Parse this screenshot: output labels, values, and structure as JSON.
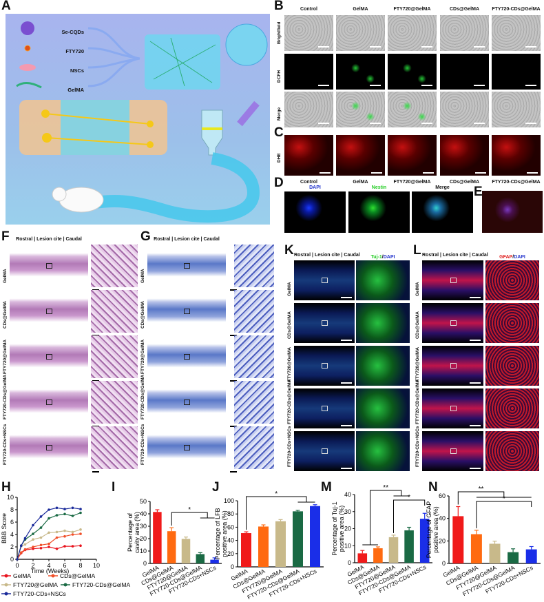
{
  "panels": {
    "A": "A",
    "B": "B",
    "C": "C",
    "D": "D",
    "E": "E",
    "F": "F",
    "G": "G",
    "H": "H",
    "I": "I",
    "J": "J",
    "K": "K",
    "L": "L",
    "M": "M",
    "N": "N"
  },
  "schematic": {
    "legend": [
      "Se-CQDs",
      "FTY720",
      "NSCs",
      "GelMA"
    ],
    "colors": {
      "background": "#9fb4e8",
      "hydrogel": "#5fd3ee",
      "se_cqds": "#7a4fd0",
      "fty720": "#e0501a",
      "nscs": "#f39ab0",
      "gelma": "#2fb07a"
    }
  },
  "panelB": {
    "columns": [
      "Control",
      "GelMA",
      "FTY720@GelMA",
      "CDs@GelMA",
      "FTY720-CDs@GelMA"
    ],
    "rows": [
      "Brightfield",
      "DCFH",
      "Merge"
    ]
  },
  "panelC": {
    "row": "DHE"
  },
  "panelD": {
    "group_labels": [
      "Control",
      "GelMA",
      "FTY720@GelMA",
      "CDs@GelMA",
      "FTY720-CDs@GelMA"
    ],
    "channels": [
      {
        "label": "DAPI",
        "color": "#2233cc"
      },
      {
        "label": "Nestin",
        "color": "#22cc22"
      },
      {
        "label": "Merge",
        "color": "#111111"
      }
    ]
  },
  "sections": {
    "header": "Rostral | Lesion cite | Caudal",
    "rows": [
      "GelMA",
      "CDs@GelMA",
      "FTY720@GelMA",
      "FTY720-CDs@GelMA",
      "FTY720-CDs+NSCs"
    ]
  },
  "panelK": {
    "stain": [
      {
        "text": "Tuj-1",
        "color": "#22cc22"
      },
      {
        "text": "/",
        "color": "#111"
      },
      {
        "text": "DAPI",
        "color": "#2233cc"
      }
    ]
  },
  "panelL": {
    "stain": [
      {
        "text": "GFAP",
        "color": "#e02020"
      },
      {
        "text": "/",
        "color": "#111"
      },
      {
        "text": "DAPI",
        "color": "#2233cc"
      }
    ]
  },
  "group_colors": {
    "GelMA": "#f01a1a",
    "CDs@GelMA": "#ff6a10",
    "FTY720@GelMA": "#c8b98a",
    "FTY720-CDs@GelMA": "#1a6a44",
    "FTY720-CDs+NSCs": "#1a2ee8"
  },
  "chart_data": [
    {
      "id": "H",
      "type": "line",
      "xlabel": "Time (Weeks)",
      "ylabel": "BBB Score",
      "xlim": [
        0,
        10
      ],
      "ylim": [
        0,
        10
      ],
      "xticks": [
        0,
        2,
        4,
        6,
        8,
        10
      ],
      "yticks": [
        0,
        2,
        4,
        6,
        8,
        10
      ],
      "legend_position": "bottom",
      "x": [
        0,
        0.5,
        1,
        2,
        3,
        4,
        5,
        6,
        7,
        8
      ],
      "series": [
        {
          "name": "GelMA",
          "marker": "circle",
          "color": "#e8141e",
          "values": [
            0,
            1.0,
            1.5,
            1.7,
            1.8,
            2.0,
            1.7,
            2.1,
            2.1,
            2.2
          ]
        },
        {
          "name": "CDs@GelMA",
          "marker": "square",
          "color": "#f0502a",
          "values": [
            0,
            1.1,
            1.6,
            2.0,
            2.3,
            2.5,
            3.5,
            3.7,
            4.0,
            4.1
          ]
        },
        {
          "name": "FTY720@GelMA",
          "marker": "triangle",
          "color": "#c8b98a",
          "values": [
            0,
            2.1,
            2.4,
            3.2,
            3.5,
            4.3,
            4.4,
            4.6,
            4.4,
            4.8
          ]
        },
        {
          "name": "FTY720-CDs@GelMA",
          "marker": "triangle-down",
          "color": "#1a6a44",
          "values": [
            0,
            2.2,
            3.2,
            4.1,
            5.1,
            6.6,
            7.1,
            7.3,
            7.0,
            7.5
          ]
        },
        {
          "name": "FTY720-CDs+NSCs",
          "marker": "diamond",
          "color": "#1a2a9a",
          "values": [
            0,
            2.2,
            3.4,
            5.5,
            6.9,
            8.0,
            8.3,
            8.1,
            8.3,
            8.1
          ]
        }
      ]
    },
    {
      "id": "I",
      "type": "bar",
      "ylabel": "Percentage of cavity area (%)",
      "ylim": [
        0,
        50
      ],
      "yticks": [
        0,
        10,
        20,
        30,
        40,
        50
      ],
      "categories": [
        "GelMA",
        "CDs@GelMA",
        "FTY720@GelMA",
        "FTY720-CDs@GelMA",
        "FTY720-CDs+NSCs"
      ],
      "values": [
        41.5,
        26,
        19.8,
        7.5,
        3
      ],
      "errors": [
        1.8,
        2.8,
        1.5,
        1.2,
        1.5
      ],
      "annotations": [
        {
          "text": "*",
          "from": [
            1
          ],
          "to": [
            3,
            4
          ]
        }
      ]
    },
    {
      "id": "J",
      "type": "bar",
      "ylabel": "Percentage of LFB positive area (%)",
      "ylim": [
        0,
        100
      ],
      "yticks": [
        0,
        20,
        40,
        60,
        80,
        100
      ],
      "categories": [
        "GelMA",
        "CDs@GelMA",
        "FTY720@GelMA",
        "FTY720-CDs@GelMA",
        "FTY720-CDs+NSCs"
      ],
      "values": [
        51,
        61,
        69,
        84,
        92
      ],
      "errors": [
        2,
        2.5,
        2.5,
        1.5,
        2
      ],
      "annotations": [
        {
          "text": "*",
          "from": [
            0
          ],
          "to": [
            3,
            4
          ]
        }
      ]
    },
    {
      "id": "M",
      "type": "bar",
      "ylabel": "Percentage of Tuj-1 positive area (%)",
      "ylim": [
        0,
        40
      ],
      "yticks": [
        0,
        10,
        20,
        30,
        40
      ],
      "categories": [
        "GelMA",
        "CDs@GelMA",
        "FTY720@GelMA",
        "FTY720-CDs@GelMA",
        "FTY720-CDs+NSCs"
      ],
      "values": [
        5.5,
        8.5,
        15,
        19,
        25.8
      ],
      "errors": [
        1.7,
        0.8,
        1.2,
        1.8,
        3.2
      ],
      "annotations": [
        {
          "text": "**",
          "from": [
            0,
            1
          ],
          "to": [
            2,
            3
          ]
        },
        {
          "text": "*",
          "from": [
            2
          ],
          "to": [
            4
          ]
        }
      ]
    },
    {
      "id": "N",
      "type": "bar",
      "ylabel": "Percentage of GFAP positive area (%)",
      "ylim": [
        0,
        60
      ],
      "yticks": [
        0,
        20,
        40,
        60
      ],
      "categories": [
        "GelMA",
        "CDs@GelMA",
        "FTY720@GelMA",
        "FTY720-CDs@GelMA",
        "FTY720-CDs+NSCs"
      ],
      "values": [
        42,
        26,
        17.5,
        10,
        12.5
      ],
      "errors": [
        8.5,
        3.5,
        2.3,
        3,
        2.5
      ],
      "annotations": [
        {
          "text": "**",
          "from": [
            0
          ],
          "to": [
            1,
            2,
            3,
            4
          ]
        },
        {
          "text": "*",
          "from": [
            1
          ],
          "to": [
            4
          ]
        }
      ]
    }
  ]
}
